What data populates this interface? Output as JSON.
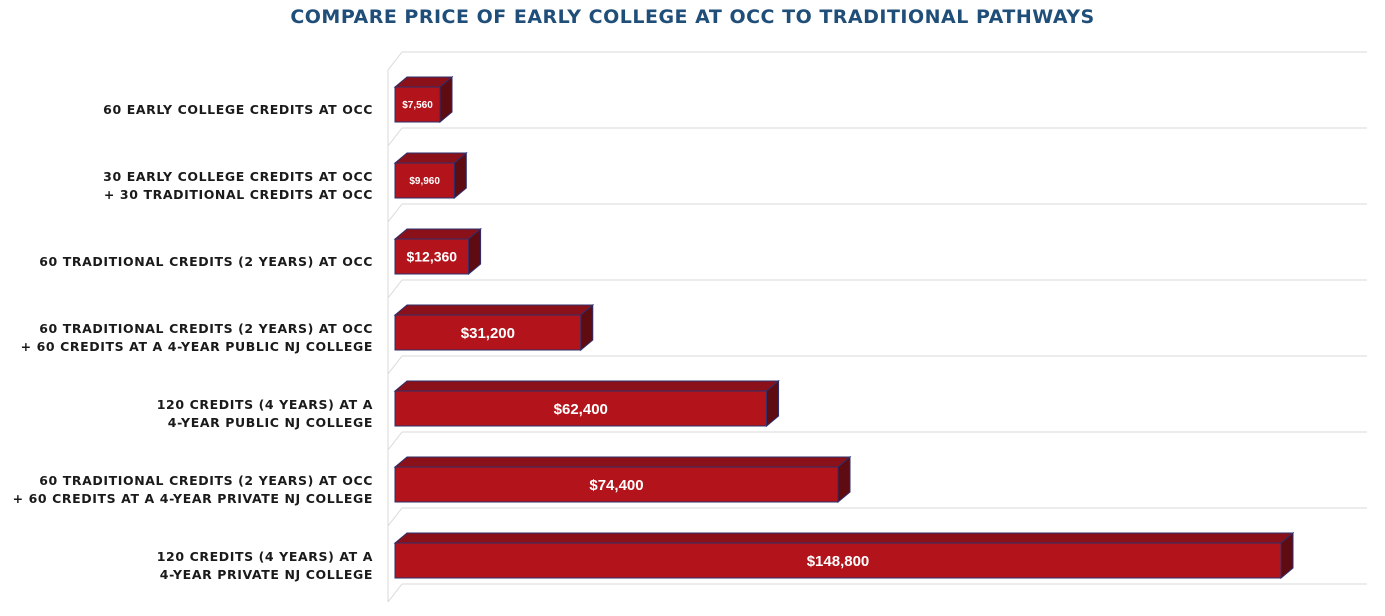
{
  "chart_data": {
    "type": "bar",
    "orientation": "horizontal",
    "style": "3d",
    "title": "COMPARE PRICE OF EARLY COLLEGE AT OCC TO TRADITIONAL PATHWAYS",
    "categories": [
      [
        "60 EARLY COLLEGE CREDITS AT OCC"
      ],
      [
        "30 EARLY COLLEGE CREDITS AT OCC",
        "+ 30 TRADITIONAL CREDITS AT OCC"
      ],
      [
        "60 TRADITIONAL CREDITS (2 YEARS) AT OCC"
      ],
      [
        "60 TRADITIONAL CREDITS (2 YEARS) AT OCC",
        "+ 60 CREDITS AT A 4-YEAR PUBLIC NJ COLLEGE"
      ],
      [
        "120 CREDITS (4 YEARS) AT A",
        "4-YEAR PUBLIC NJ COLLEGE"
      ],
      [
        "60 TRADITIONAL CREDITS (2 YEARS) AT OCC",
        "+ 60 CREDITS AT A  4-YEAR PRIVATE NJ COLLEGE"
      ],
      [
        "120 CREDITS (4 YEARS) AT A",
        "4-YEAR PRIVATE NJ COLLEGE"
      ]
    ],
    "values": [
      7560,
      9960,
      12360,
      31200,
      62400,
      74400,
      148800
    ],
    "data_labels": [
      "$7,560",
      "$9,960",
      "$12,360",
      "$31,200",
      "$62,400",
      "$74,400",
      "$148,800"
    ],
    "xlim": [
      0,
      160000
    ],
    "grid": true,
    "legend": "none",
    "colors": {
      "bar_front": "#b3141b",
      "bar_top": "#8a1019",
      "bar_side": "#5e0b12",
      "bar_outline": "#2e2f6b",
      "gridline": "#d9d9d9",
      "title": "#1f4e79"
    }
  }
}
